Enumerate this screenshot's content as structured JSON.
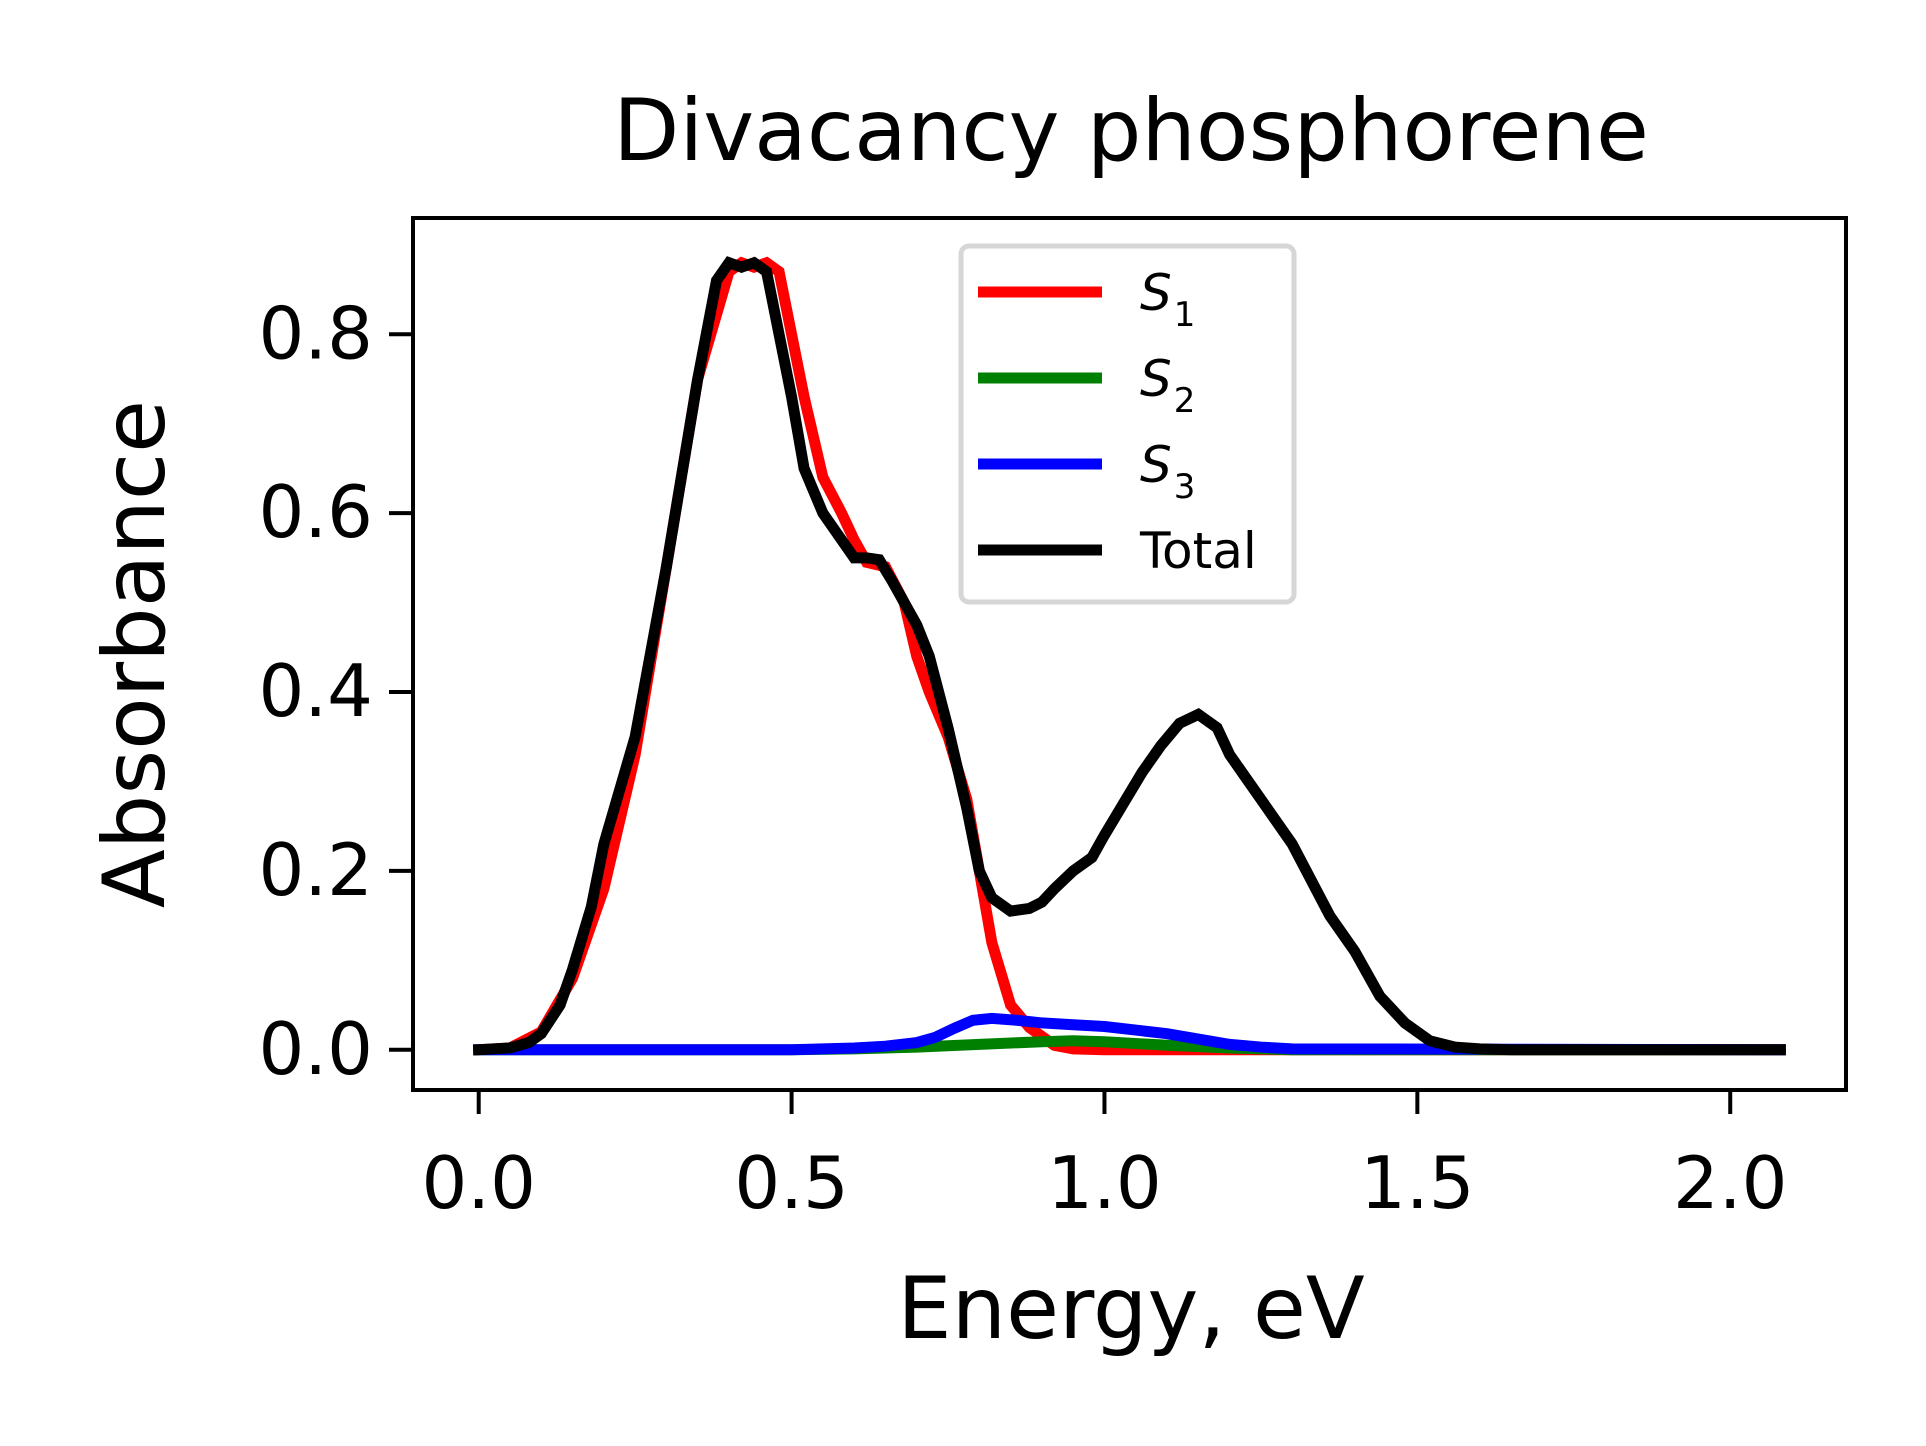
{
  "chart_data": {
    "type": "line",
    "title": "Divacancy phosphorene",
    "xlabel": "Energy, eV",
    "ylabel": "Absorbance",
    "xlim": [
      -0.105,
      2.185
    ],
    "ylim": [
      -0.045,
      0.93
    ],
    "xticks": [
      0.0,
      0.5,
      1.0,
      1.5,
      2.0
    ],
    "xtick_labels": [
      "0.0",
      "0.5",
      "1.0",
      "1.5",
      "2.0"
    ],
    "yticks": [
      0.0,
      0.2,
      0.4,
      0.6,
      0.8
    ],
    "ytick_labels": [
      "0.0",
      "0.2",
      "0.4",
      "0.6",
      "0.8"
    ],
    "grid": false,
    "legend_position": "top-center",
    "series": [
      {
        "name": "S1",
        "legend_main": "S",
        "legend_sub": "1",
        "color": "#ff0000",
        "x": [
          0.0,
          0.05,
          0.1,
          0.15,
          0.2,
          0.25,
          0.3,
          0.35,
          0.4,
          0.42,
          0.44,
          0.46,
          0.48,
          0.5,
          0.52,
          0.55,
          0.58,
          0.6,
          0.62,
          0.65,
          0.68,
          0.7,
          0.72,
          0.75,
          0.78,
          0.8,
          0.82,
          0.85,
          0.88,
          0.9,
          0.92,
          0.95,
          1.0,
          1.1,
          1.2,
          1.5,
          2.08
        ],
        "y": [
          0.0,
          0.002,
          0.02,
          0.08,
          0.18,
          0.33,
          0.54,
          0.75,
          0.87,
          0.88,
          0.875,
          0.88,
          0.87,
          0.8,
          0.73,
          0.64,
          0.6,
          0.57,
          0.545,
          0.54,
          0.5,
          0.44,
          0.4,
          0.35,
          0.28,
          0.2,
          0.12,
          0.05,
          0.025,
          0.015,
          0.005,
          0.001,
          0.0,
          0.0,
          0.0,
          0.0,
          0.0
        ]
      },
      {
        "name": "S2",
        "legend_main": "S",
        "legend_sub": "2",
        "color": "#008000",
        "x": [
          0.0,
          0.5,
          0.6,
          0.7,
          0.8,
          0.9,
          0.95,
          1.0,
          1.1,
          1.2,
          1.3,
          2.08
        ],
        "y": [
          0.0,
          0.0,
          0.001,
          0.003,
          0.006,
          0.009,
          0.01,
          0.009,
          0.005,
          0.002,
          0.0,
          0.0
        ]
      },
      {
        "name": "S3",
        "legend_main": "S",
        "legend_sub": "3",
        "color": "#0000ff",
        "x": [
          0.0,
          0.5,
          0.55,
          0.6,
          0.65,
          0.7,
          0.73,
          0.76,
          0.79,
          0.82,
          0.86,
          0.9,
          0.95,
          1.0,
          1.05,
          1.1,
          1.15,
          1.2,
          1.25,
          1.3,
          2.08
        ],
        "y": [
          0.0,
          0.0,
          0.001,
          0.002,
          0.004,
          0.008,
          0.014,
          0.024,
          0.033,
          0.035,
          0.033,
          0.03,
          0.028,
          0.026,
          0.022,
          0.018,
          0.012,
          0.006,
          0.003,
          0.001,
          0.0
        ]
      },
      {
        "name": "Total",
        "legend_main": "Total",
        "legend_sub": "",
        "color": "#000000",
        "x": [
          0.0,
          0.05,
          0.08,
          0.1,
          0.13,
          0.15,
          0.18,
          0.2,
          0.25,
          0.3,
          0.35,
          0.38,
          0.4,
          0.42,
          0.44,
          0.46,
          0.48,
          0.5,
          0.52,
          0.55,
          0.58,
          0.6,
          0.62,
          0.64,
          0.66,
          0.68,
          0.7,
          0.72,
          0.75,
          0.78,
          0.8,
          0.82,
          0.85,
          0.88,
          0.9,
          0.92,
          0.95,
          0.98,
          1.0,
          1.03,
          1.06,
          1.09,
          1.12,
          1.15,
          1.18,
          1.2,
          1.23,
          1.26,
          1.3,
          1.33,
          1.36,
          1.4,
          1.44,
          1.48,
          1.52,
          1.56,
          1.6,
          1.65,
          1.7,
          2.08
        ],
        "y": [
          0.0,
          0.002,
          0.008,
          0.018,
          0.05,
          0.09,
          0.16,
          0.23,
          0.35,
          0.54,
          0.75,
          0.86,
          0.88,
          0.875,
          0.88,
          0.87,
          0.8,
          0.73,
          0.65,
          0.6,
          0.57,
          0.55,
          0.55,
          0.548,
          0.525,
          0.5,
          0.475,
          0.44,
          0.36,
          0.27,
          0.2,
          0.17,
          0.155,
          0.158,
          0.165,
          0.18,
          0.2,
          0.215,
          0.24,
          0.275,
          0.31,
          0.34,
          0.365,
          0.375,
          0.36,
          0.33,
          0.3,
          0.27,
          0.23,
          0.19,
          0.15,
          0.11,
          0.06,
          0.03,
          0.01,
          0.003,
          0.001,
          0.0,
          0.0,
          0.0
        ]
      }
    ]
  }
}
